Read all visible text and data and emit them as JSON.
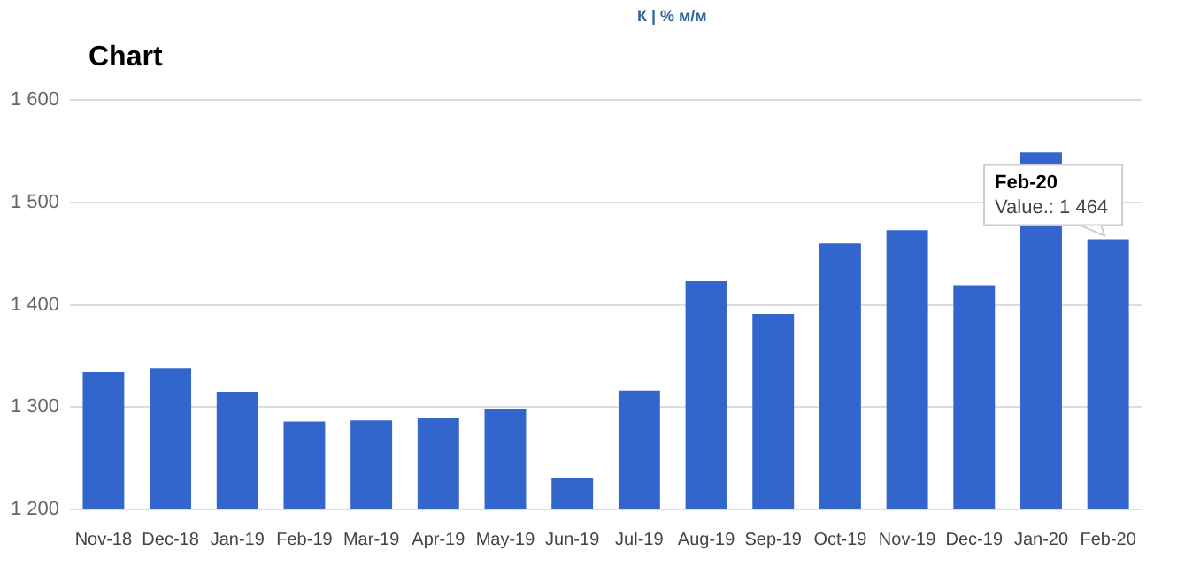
{
  "chart_data": {
    "type": "bar",
    "title": "Chart",
    "categories": [
      "Nov-18",
      "Dec-18",
      "Jan-19",
      "Feb-19",
      "Mar-19",
      "Apr-19",
      "May-19",
      "Jun-19",
      "Jul-19",
      "Aug-19",
      "Sep-19",
      "Oct-19",
      "Nov-19",
      "Dec-19",
      "Jan-20",
      "Feb-20"
    ],
    "values": [
      1334,
      1338,
      1315,
      1286,
      1287,
      1289,
      1298,
      1231,
      1316,
      1423,
      1391,
      1460,
      1473,
      1419,
      1549,
      1464
    ],
    "color": "#3366cc",
    "ylim": [
      1200,
      1600
    ],
    "yticks": [
      {
        "value": 1200,
        "label": "1 200"
      },
      {
        "value": 1300,
        "label": "1 300"
      },
      {
        "value": 1400,
        "label": "1 400"
      },
      {
        "value": 1500,
        "label": "1 500"
      },
      {
        "value": 1600,
        "label": "1 600"
      }
    ],
    "grid": "y",
    "legend": false,
    "annotations": [
      "К | % м/м",
      "Feb-20",
      "Value.: 1 464"
    ]
  }
}
